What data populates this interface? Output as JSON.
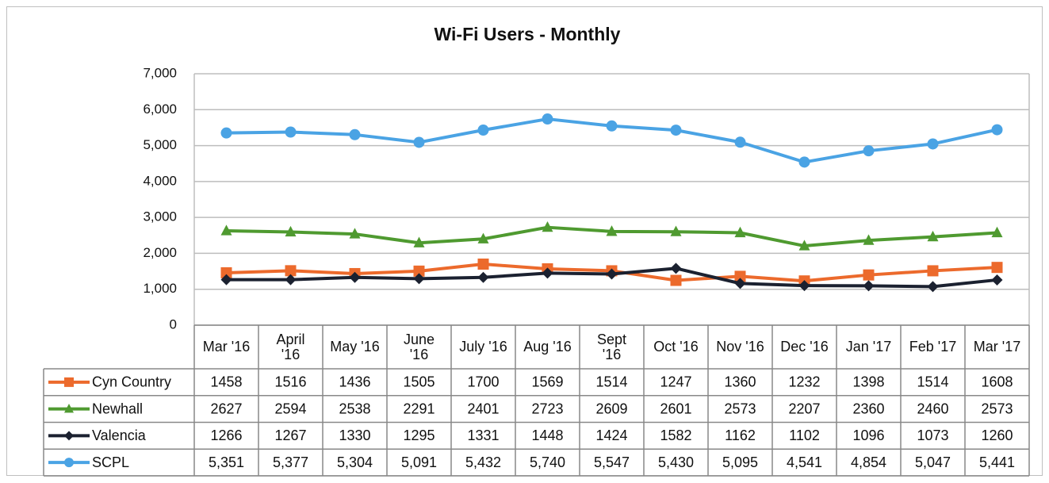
{
  "chart_data": {
    "type": "line",
    "title": "Wi-Fi Users - Monthly",
    "categories": [
      "Mar '16",
      "April\n'16",
      "May '16",
      "June\n'16",
      "July '16",
      "Aug '16",
      "Sept\n'16",
      "Oct '16",
      "Nov '16",
      "Dec '16",
      "Jan '17",
      "Feb '17",
      "Mar '17"
    ],
    "series": [
      {
        "name": "Cyn Country",
        "color": "#ec6a2c",
        "marker": "square",
        "values": [
          1458,
          1516,
          1436,
          1505,
          1700,
          1569,
          1514,
          1247,
          1360,
          1232,
          1398,
          1514,
          1608
        ]
      },
      {
        "name": "Newhall",
        "color": "#4f9a30",
        "marker": "triangle",
        "values": [
          2627,
          2594,
          2538,
          2291,
          2401,
          2723,
          2609,
          2601,
          2573,
          2207,
          2360,
          2460,
          2573
        ]
      },
      {
        "name": "Valencia",
        "color": "#1b2130",
        "marker": "diamond",
        "values": [
          1266,
          1267,
          1330,
          1295,
          1331,
          1448,
          1424,
          1582,
          1162,
          1102,
          1096,
          1073,
          1260
        ]
      },
      {
        "name": "SCPL",
        "color": "#4aa3e4",
        "marker": "circle",
        "values": [
          5351,
          5377,
          5304,
          5091,
          5432,
          5740,
          5547,
          5430,
          5095,
          4541,
          4854,
          5047,
          5441
        ],
        "value_labels": [
          "5,351",
          "5,377",
          "5,304",
          "5,091",
          "5,432",
          "5,740",
          "5,547",
          "5,430",
          "5,095",
          "4,541",
          "4,854",
          "5,047",
          "5,441"
        ]
      }
    ],
    "ylim": [
      0,
      7000
    ],
    "yticks": [
      0,
      {
        "value": 1000,
        "label": "1,000"
      },
      {
        "value": 2000,
        "label": "2,000"
      },
      {
        "value": 3000,
        "label": "3,000"
      },
      {
        "value": 4000,
        "label": "4,000"
      },
      {
        "value": 5000,
        "label": "5,000"
      },
      {
        "value": 6000,
        "label": "6,000"
      },
      {
        "value": 7000,
        "label": "7,000"
      }
    ],
    "grid": true,
    "data_table": true
  }
}
